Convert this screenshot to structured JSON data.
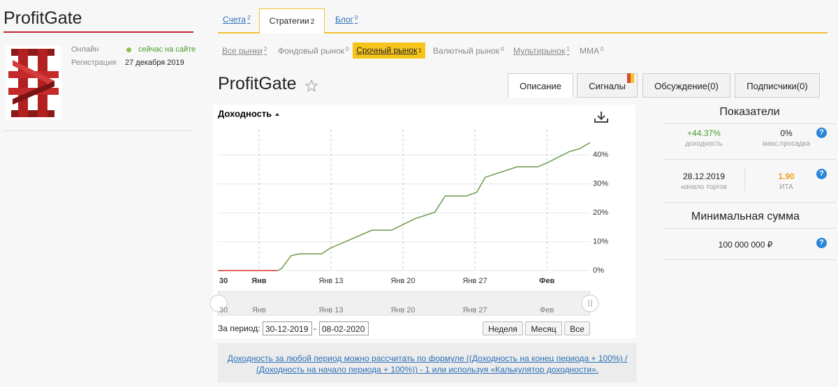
{
  "profile": {
    "name": "ProfitGate",
    "online_label": "Онлайн",
    "online_status": "сейчас на сайте",
    "reg_label": "Регистрация",
    "reg_date": "27 декабря 2019"
  },
  "nav_tabs": [
    {
      "label": "Счета",
      "count": 2
    },
    {
      "label": "Стратегии",
      "count": 2
    },
    {
      "label": "Блог",
      "count": 0
    }
  ],
  "markets": [
    {
      "label": "Все рынки",
      "count": 2
    },
    {
      "label": "Фондовый рынок",
      "count": 0
    },
    {
      "label": "Срочный рынок",
      "count": 1
    },
    {
      "label": "Валютный рынок",
      "count": 0
    },
    {
      "label": "Мультирынок",
      "count": 1
    },
    {
      "label": "MMA",
      "count": 0
    }
  ],
  "strategy": {
    "name": "ProfitGate",
    "tabs": [
      "Описание",
      "Сигналы",
      "Обсуждение(0)",
      "Подписчики(0)"
    ]
  },
  "chart_data": {
    "type": "line",
    "title": "Доходность",
    "series": [
      {
        "color": "#d9342b",
        "x": [
          3,
          8.8
        ],
        "values": [
          0,
          0
        ]
      },
      {
        "color": "#6b9a47",
        "x": [
          8.8,
          9.2,
          10.1,
          10.9,
          13.1,
          13.9,
          18,
          19.9,
          22.2,
          24.1,
          25.1,
          27.2,
          28.2,
          29,
          32.1,
          34.1,
          35.2,
          37.2,
          38.2,
          39.2
        ],
        "values": [
          0,
          0.7,
          5.1,
          5.8,
          5.8,
          7.7,
          14,
          14,
          18,
          20.2,
          25.8,
          25.8,
          27.2,
          32.3,
          35.9,
          35.9,
          37.6,
          41.2,
          42.2,
          44.3
        ]
      }
    ],
    "xlim": [
      3,
      39.2
    ],
    "xticks": [
      {
        "value": 0,
        "label": "30"
      },
      {
        "value": 7,
        "label": "Янв"
      },
      {
        "value": 14,
        "label": "Янв 13"
      },
      {
        "value": 21,
        "label": "Янв 20"
      },
      {
        "value": 28,
        "label": "Янв 27"
      },
      {
        "value": 35,
        "label": "Фев"
      }
    ],
    "ylim": [
      0,
      49
    ],
    "yticks": [
      {
        "value": 0,
        "label": "0%"
      },
      {
        "value": 10,
        "label": "10%"
      },
      {
        "value": 20,
        "label": "20%"
      },
      {
        "value": 30,
        "label": "30%"
      },
      {
        "value": 40,
        "label": "40%"
      }
    ],
    "grid": true
  },
  "period": {
    "label": "За период:",
    "from": "30-12-2019",
    "sep": "-",
    "to": "08-02-2020",
    "buttons": [
      "Неделя",
      "Месяц",
      "Все"
    ]
  },
  "indicators": {
    "title": "Показатели",
    "help": "?",
    "items": [
      {
        "value": "+44.37%",
        "label": "доходность"
      },
      {
        "value": "0%",
        "label": "макс.просадка"
      },
      {
        "value": "28.12.2019",
        "label": "начало торгов"
      },
      {
        "value": "1.90",
        "label": "ИТА"
      }
    ]
  },
  "min_sum": {
    "title": "Минимальная сумма",
    "value": "100 000 000 ₽"
  },
  "note": "Доходность за любой период можно рассчитать по формуле ((Доходность на конец периода + 100%) / (Доходность на начало периода + 100%)) - 1 или используя «Калькулятор доходности»."
}
